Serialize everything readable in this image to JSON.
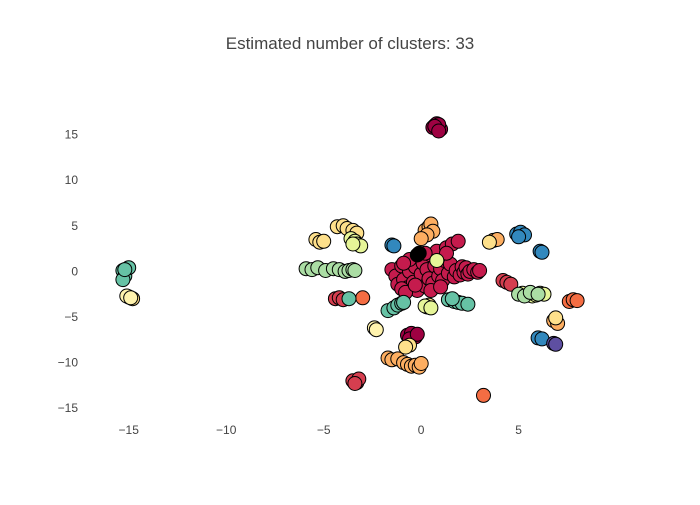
{
  "chart_data": {
    "type": "scatter",
    "title": "Estimated number of clusters: 33",
    "xlabel": "",
    "ylabel": "",
    "xlim": [
      -17.5,
      10.2
    ],
    "ylim": [
      -16.3,
      18.8
    ],
    "x_ticks": [
      -15,
      -10,
      -5,
      0,
      5
    ],
    "x_tick_labels": [
      "−15",
      "−10",
      "−5",
      "0",
      "5"
    ],
    "y_ticks": [
      15,
      10,
      5,
      0,
      -5,
      -10,
      -15
    ],
    "y_tick_labels": [
      "15",
      "10",
      "5",
      "0",
      "−5",
      "−10",
      "−15"
    ],
    "grid": false,
    "marker_outline": "#000000",
    "clusters": [
      {
        "color": "#9e0142",
        "points": [
          [
            0.7,
            16.0
          ],
          [
            0.8,
            16.2
          ],
          [
            0.6,
            15.8
          ],
          [
            1.0,
            15.6
          ],
          [
            0.9,
            16.1
          ],
          [
            0.7,
            15.9
          ],
          [
            0.9,
            15.4
          ],
          [
            -0.7,
            -7.0
          ],
          [
            -0.5,
            -6.8
          ],
          [
            -0.3,
            -7.2
          ],
          [
            -0.6,
            -7.4
          ],
          [
            -0.2,
            -6.9
          ]
        ]
      },
      {
        "color": "#c51b4d",
        "points": [
          [
            -1.5,
            0.2
          ],
          [
            -1.3,
            -0.5
          ],
          [
            -1.2,
            -1.4
          ],
          [
            -1.0,
            0.6
          ],
          [
            -0.9,
            -0.9
          ],
          [
            -0.7,
            -1.8
          ],
          [
            -0.6,
            0.0
          ],
          [
            -0.5,
            1.1
          ],
          [
            -0.4,
            -1.2
          ],
          [
            -0.3,
            0.5
          ],
          [
            -0.2,
            -2.1
          ],
          [
            -0.1,
            1.5
          ],
          [
            0.0,
            -0.3
          ],
          [
            0.1,
            0.9
          ],
          [
            0.2,
            -1.6
          ],
          [
            0.3,
            0.2
          ],
          [
            0.4,
            -0.8
          ],
          [
            0.5,
            1.8
          ],
          [
            0.6,
            -1.3
          ],
          [
            0.7,
            0.6
          ],
          [
            0.8,
            2.2
          ],
          [
            0.9,
            -0.5
          ],
          [
            1.0,
            0.3
          ],
          [
            1.1,
            -1.0
          ],
          [
            1.2,
            1.2
          ],
          [
            1.3,
            2.6
          ],
          [
            1.4,
            -0.2
          ],
          [
            1.5,
            0.8
          ],
          [
            1.6,
            3.0
          ],
          [
            1.7,
            -0.6
          ],
          [
            1.8,
            0.1
          ],
          [
            1.9,
            3.3
          ],
          [
            2.0,
            -0.4
          ],
          [
            2.1,
            0.5
          ],
          [
            2.2,
            -0.1
          ],
          [
            2.3,
            0.4
          ],
          [
            2.4,
            -0.3
          ],
          [
            2.5,
            0.0
          ],
          [
            2.7,
            0.2
          ],
          [
            2.9,
            -0.1
          ],
          [
            3.0,
            0.1
          ],
          [
            -1.0,
            -1.9
          ],
          [
            -0.8,
            -2.3
          ],
          [
            -0.6,
            1.3
          ],
          [
            0.2,
            2.0
          ],
          [
            0.5,
            -2.1
          ],
          [
            1.0,
            -1.7
          ],
          [
            1.3,
            2.0
          ],
          [
            -0.9,
            0.9
          ],
          [
            -0.3,
            -1.5
          ]
        ]
      },
      {
        "color": "#d53e4f",
        "points": [
          [
            4.2,
            -1.0
          ],
          [
            4.4,
            -1.2
          ],
          [
            4.6,
            -1.4
          ],
          [
            -4.4,
            -3.0
          ],
          [
            -4.2,
            -2.9
          ],
          [
            -4.0,
            -3.1
          ],
          [
            -3.5,
            -12.0
          ],
          [
            -3.3,
            -12.2
          ],
          [
            -3.2,
            -11.8
          ],
          [
            -3.4,
            -12.3
          ]
        ]
      },
      {
        "color": "#f46d43",
        "points": [
          [
            3.2,
            -13.6
          ],
          [
            7.6,
            -3.3
          ],
          [
            7.8,
            -3.1
          ],
          [
            8.0,
            -3.2
          ],
          [
            -3.0,
            -2.9
          ]
        ]
      },
      {
        "color": "#fdae61",
        "points": [
          [
            -1.7,
            -9.5
          ],
          [
            -1.5,
            -9.7
          ],
          [
            -1.2,
            -9.6
          ],
          [
            -0.9,
            -10.0
          ],
          [
            -0.7,
            -10.2
          ],
          [
            -0.5,
            -10.4
          ],
          [
            -0.3,
            -10.3
          ],
          [
            -0.1,
            -10.5
          ],
          [
            0.0,
            -10.1
          ],
          [
            0.2,
            4.5
          ],
          [
            0.4,
            4.9
          ],
          [
            0.5,
            5.2
          ],
          [
            0.6,
            4.4
          ],
          [
            0.3,
            4.0
          ],
          [
            0.0,
            3.6
          ],
          [
            6.8,
            -5.4
          ],
          [
            7.0,
            -5.7
          ],
          [
            3.7,
            3.4
          ],
          [
            3.9,
            3.5
          ]
        ]
      },
      {
        "color": "#fee08b",
        "points": [
          [
            -5.4,
            3.5
          ],
          [
            -5.2,
            3.2
          ],
          [
            -5.0,
            3.3
          ],
          [
            -4.3,
            4.9
          ],
          [
            -4.0,
            5.0
          ],
          [
            -3.8,
            4.7
          ],
          [
            -3.5,
            4.5
          ],
          [
            -3.3,
            4.2
          ],
          [
            6.9,
            -5.1
          ],
          [
            -0.6,
            -8.1
          ],
          [
            -0.8,
            -8.3
          ],
          [
            -15.0,
            -2.8
          ],
          [
            -14.8,
            -3.0
          ],
          [
            0.4,
            -3.7
          ],
          [
            0.3,
            -3.9
          ],
          [
            3.5,
            3.2
          ]
        ]
      },
      {
        "color": "#fff3ae",
        "points": [
          [
            -2.4,
            -6.2
          ],
          [
            -2.3,
            -6.4
          ],
          [
            -15.1,
            -2.7
          ],
          [
            -14.9,
            -2.9
          ]
        ]
      },
      {
        "color": "#e6f598",
        "points": [
          [
            -3.6,
            3.6
          ],
          [
            -3.4,
            3.3
          ],
          [
            -3.3,
            3.0
          ],
          [
            -3.1,
            2.8
          ],
          [
            -3.5,
            3.0
          ],
          [
            0.8,
            1.2
          ],
          [
            5.2,
            -2.4
          ],
          [
            5.5,
            -2.6
          ],
          [
            5.7,
            -2.7
          ],
          [
            5.9,
            -2.6
          ],
          [
            6.1,
            -2.4
          ],
          [
            6.3,
            -2.5
          ],
          [
            0.2,
            -3.8
          ],
          [
            0.5,
            -4.0
          ]
        ]
      },
      {
        "color": "#abdda4",
        "points": [
          [
            -5.9,
            0.3
          ],
          [
            -5.6,
            0.2
          ],
          [
            -5.3,
            0.4
          ],
          [
            -4.9,
            0.1
          ],
          [
            -4.5,
            0.3
          ],
          [
            -4.2,
            0.2
          ],
          [
            -3.9,
            0.0
          ],
          [
            -3.7,
            0.1
          ],
          [
            -3.5,
            0.2
          ],
          [
            -3.4,
            0.1
          ],
          [
            5.0,
            -2.5
          ],
          [
            5.3,
            -2.7
          ],
          [
            5.6,
            -2.3
          ],
          [
            6.0,
            -2.5
          ]
        ]
      },
      {
        "color": "#66c2a5",
        "points": [
          [
            -1.7,
            -4.3
          ],
          [
            -1.4,
            -4.0
          ],
          [
            -1.2,
            -3.7
          ],
          [
            -1.0,
            -3.5
          ],
          [
            -0.9,
            -3.4
          ],
          [
            1.4,
            -3.1
          ],
          [
            1.7,
            -3.3
          ],
          [
            1.9,
            -3.4
          ],
          [
            2.1,
            -3.5
          ],
          [
            2.4,
            -3.6
          ],
          [
            1.6,
            -3.0
          ],
          [
            -3.7,
            -3.0
          ],
          [
            -15.3,
            0.1
          ],
          [
            -15.2,
            -0.5
          ],
          [
            -15.3,
            -0.9
          ],
          [
            -15.0,
            0.4
          ],
          [
            -15.2,
            0.2
          ]
        ]
      },
      {
        "color": "#3288bd",
        "points": [
          [
            -1.5,
            2.9
          ],
          [
            -1.4,
            2.8
          ],
          [
            4.9,
            4.1
          ],
          [
            5.1,
            4.3
          ],
          [
            5.3,
            4.0
          ],
          [
            5.0,
            3.8
          ],
          [
            6.1,
            2.2
          ],
          [
            6.2,
            2.1
          ],
          [
            6.0,
            -7.3
          ],
          [
            6.2,
            -7.4
          ]
        ]
      },
      {
        "color": "#5e4fa2",
        "points": [
          [
            6.8,
            -7.9
          ],
          [
            6.9,
            -8.0
          ]
        ]
      },
      {
        "color": "#000000",
        "points": [
          [
            -0.2,
            1.8
          ],
          [
            -0.1,
            2.0
          ]
        ]
      }
    ]
  }
}
